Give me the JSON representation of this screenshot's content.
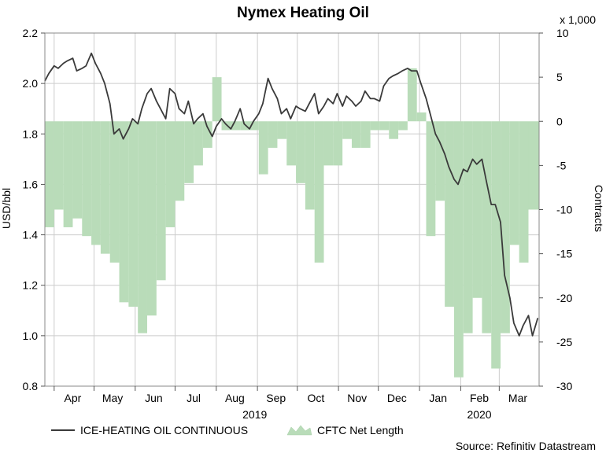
{
  "chart_data": {
    "type": "line+area",
    "title": "Nymex Heating Oil",
    "source": "Source: Refinitiv Datastream",
    "multiplier_label": "x 1,000",
    "y_left": {
      "label": "USD/bbl",
      "range": [
        0.8,
        2.2
      ],
      "ticks": [
        "2.2",
        "2.0",
        "1.8",
        "1.6",
        "1.4",
        "1.2",
        "1.0",
        "0.8"
      ]
    },
    "y_right": {
      "label": "Contracts",
      "range": [
        -30,
        10
      ],
      "ticks": [
        "10",
        "5",
        "0",
        "-5",
        "-10",
        "-15",
        "-20",
        "-25",
        "-30"
      ]
    },
    "x_axis": {
      "range": [
        "2019-03-25",
        "2020-03-31"
      ],
      "months": [
        {
          "label": "Apr",
          "date": "2019-04-15"
        },
        {
          "label": "May",
          "date": "2019-05-15"
        },
        {
          "label": "Jun",
          "date": "2019-06-15"
        },
        {
          "label": "Jul",
          "date": "2019-07-15"
        },
        {
          "label": "Aug",
          "date": "2019-08-15"
        },
        {
          "label": "Sep",
          "date": "2019-09-15"
        },
        {
          "label": "Oct",
          "date": "2019-10-15"
        },
        {
          "label": "Nov",
          "date": "2019-11-15"
        },
        {
          "label": "Dec",
          "date": "2019-12-15"
        },
        {
          "label": "Jan",
          "date": "2020-01-15"
        },
        {
          "label": "Feb",
          "date": "2020-02-15"
        },
        {
          "label": "Mar",
          "date": "2020-03-15"
        }
      ],
      "years": [
        {
          "label": "2019",
          "date": "2019-08-30"
        },
        {
          "label": "2020",
          "date": "2020-02-15"
        }
      ]
    },
    "grid": true,
    "legend": {
      "placement": "bottom-left",
      "line": "ICE-HEATING OIL CONTINUOUS",
      "area": "CFTC Net Length"
    },
    "colors": {
      "line": "#3a3a3a",
      "area": "#b9dcb9",
      "grid": "#cccccc"
    },
    "series": [
      {
        "name": "ICE-HEATING OIL CONTINUOUS",
        "axis": "left",
        "x": [
          "2019-03-25",
          "2019-03-28",
          "2019-04-01",
          "2019-04-04",
          "2019-04-08",
          "2019-04-11",
          "2019-04-15",
          "2019-04-18",
          "2019-04-22",
          "2019-04-25",
          "2019-04-29",
          "2019-05-02",
          "2019-05-06",
          "2019-05-09",
          "2019-05-13",
          "2019-05-16",
          "2019-05-20",
          "2019-05-23",
          "2019-05-27",
          "2019-05-30",
          "2019-06-03",
          "2019-06-06",
          "2019-06-10",
          "2019-06-13",
          "2019-06-17",
          "2019-06-20",
          "2019-06-24",
          "2019-06-27",
          "2019-07-01",
          "2019-07-04",
          "2019-07-08",
          "2019-07-11",
          "2019-07-15",
          "2019-07-18",
          "2019-07-22",
          "2019-07-25",
          "2019-07-29",
          "2019-08-01",
          "2019-08-05",
          "2019-08-08",
          "2019-08-12",
          "2019-08-15",
          "2019-08-19",
          "2019-08-22",
          "2019-08-26",
          "2019-08-29",
          "2019-09-02",
          "2019-09-05",
          "2019-09-09",
          "2019-09-12",
          "2019-09-16",
          "2019-09-19",
          "2019-09-23",
          "2019-09-26",
          "2019-09-30",
          "2019-10-03",
          "2019-10-07",
          "2019-10-10",
          "2019-10-14",
          "2019-10-17",
          "2019-10-21",
          "2019-10-24",
          "2019-10-28",
          "2019-10-31",
          "2019-11-04",
          "2019-11-07",
          "2019-11-11",
          "2019-11-14",
          "2019-11-18",
          "2019-11-21",
          "2019-11-25",
          "2019-11-28",
          "2019-12-02",
          "2019-12-05",
          "2019-12-09",
          "2019-12-12",
          "2019-12-16",
          "2019-12-19",
          "2019-12-23",
          "2019-12-26",
          "2019-12-30",
          "2020-01-02",
          "2020-01-06",
          "2020-01-09",
          "2020-01-13",
          "2020-01-16",
          "2020-01-20",
          "2020-01-23",
          "2020-01-27",
          "2020-01-30",
          "2020-02-03",
          "2020-02-06",
          "2020-02-10",
          "2020-02-13",
          "2020-02-17",
          "2020-02-20",
          "2020-02-24",
          "2020-02-27",
          "2020-03-02",
          "2020-03-05",
          "2020-03-09",
          "2020-03-12",
          "2020-03-16",
          "2020-03-19",
          "2020-03-23",
          "2020-03-26",
          "2020-03-30"
        ],
        "values": [
          2.01,
          2.04,
          2.07,
          2.06,
          2.08,
          2.09,
          2.1,
          2.05,
          2.06,
          2.07,
          2.12,
          2.08,
          2.04,
          2.0,
          1.92,
          1.8,
          1.82,
          1.78,
          1.82,
          1.86,
          1.84,
          1.9,
          1.96,
          1.98,
          1.93,
          1.9,
          1.86,
          1.98,
          1.96,
          1.9,
          1.88,
          1.93,
          1.84,
          1.86,
          1.88,
          1.83,
          1.79,
          1.83,
          1.86,
          1.84,
          1.82,
          1.85,
          1.9,
          1.84,
          1.82,
          1.85,
          1.88,
          1.92,
          2.02,
          1.98,
          1.94,
          1.88,
          1.9,
          1.86,
          1.91,
          1.9,
          1.89,
          1.92,
          1.96,
          1.88,
          1.91,
          1.94,
          1.92,
          1.96,
          1.91,
          1.95,
          1.93,
          1.91,
          1.93,
          1.97,
          1.94,
          1.94,
          1.93,
          1.99,
          2.02,
          2.03,
          2.04,
          2.05,
          2.06,
          2.05,
          2.05,
          2.0,
          1.94,
          1.88,
          1.8,
          1.77,
          1.72,
          1.67,
          1.62,
          1.6,
          1.66,
          1.65,
          1.7,
          1.68,
          1.7,
          1.62,
          1.52,
          1.52,
          1.45,
          1.24,
          1.15,
          1.05,
          1.0,
          1.04,
          1.08,
          1.0,
          1.07
        ]
      },
      {
        "name": "CFTC Net Length",
        "axis": "right",
        "x": [
          "2019-03-25",
          "2019-04-01",
          "2019-04-08",
          "2019-04-15",
          "2019-04-22",
          "2019-04-29",
          "2019-05-06",
          "2019-05-13",
          "2019-05-20",
          "2019-05-27",
          "2019-06-03",
          "2019-06-10",
          "2019-06-17",
          "2019-06-24",
          "2019-07-01",
          "2019-07-08",
          "2019-07-15",
          "2019-07-22",
          "2019-07-29",
          "2019-08-05",
          "2019-08-12",
          "2019-08-19",
          "2019-08-26",
          "2019-09-02",
          "2019-09-09",
          "2019-09-16",
          "2019-09-23",
          "2019-09-30",
          "2019-10-07",
          "2019-10-14",
          "2019-10-21",
          "2019-10-28",
          "2019-11-04",
          "2019-11-11",
          "2019-11-18",
          "2019-11-25",
          "2019-12-02",
          "2019-12-09",
          "2019-12-16",
          "2019-12-23",
          "2019-12-30",
          "2020-01-06",
          "2020-01-13",
          "2020-01-20",
          "2020-01-27",
          "2020-02-03",
          "2020-02-10",
          "2020-02-17",
          "2020-02-24",
          "2020-03-02",
          "2020-03-09",
          "2020-03-16",
          "2020-03-23"
        ],
        "values": [
          -12,
          -10,
          -12,
          -11,
          -13,
          -14,
          -15,
          -16,
          -20.5,
          -21,
          -24,
          -22,
          -18,
          -12,
          -9,
          -7,
          -5,
          -3,
          5,
          -1,
          -1,
          -1,
          -1,
          -6,
          -3,
          -2,
          -5,
          -7,
          -10,
          -16,
          -5,
          -5,
          -2,
          -3,
          -3,
          -1,
          -1,
          -2,
          -1,
          6,
          1,
          -13,
          -9,
          -21,
          -29,
          -24,
          -20,
          -24,
          -28,
          -24,
          -14,
          -16,
          -10
        ]
      }
    ]
  }
}
